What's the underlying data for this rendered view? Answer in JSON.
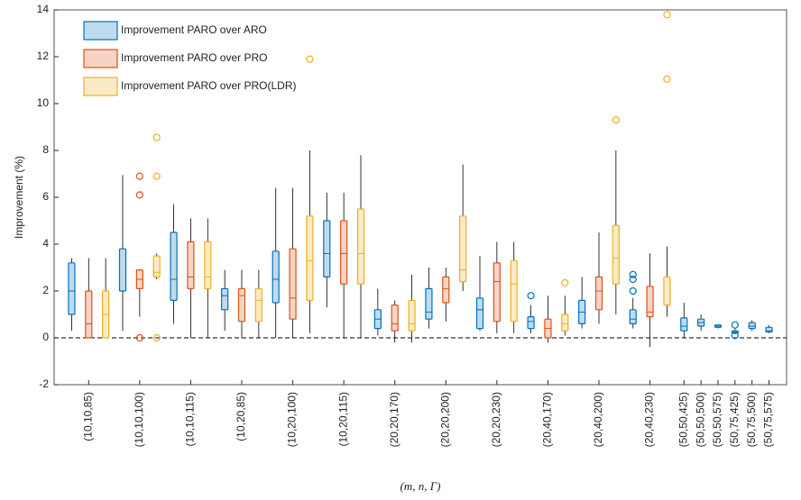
{
  "chart_data": {
    "type": "box",
    "ylabel": "Improvement (%)",
    "xlabel": "(m, n, Γ)",
    "categories": [
      "(10,10,85)",
      "(10,10,100)",
      "(10,10,115)",
      "(10,20,85)",
      "(10,20,100)",
      "(10,20,115)",
      "(20,20,170)",
      "(20,20,200)",
      "(20,20,230)",
      "(20,40,170)",
      "(20,40,200)",
      "(20,40,230)",
      "(50,50,425)",
      "(50,50,500)",
      "(50,50,575)",
      "(50,75,425)",
      "(50,75,500)",
      "(50,75,575)"
    ],
    "ylim": [
      -2,
      14
    ],
    "yticks": [
      -2,
      0,
      2,
      4,
      6,
      8,
      10,
      12,
      14
    ],
    "reference_line": 0,
    "legend": "upper left",
    "series": [
      {
        "name": "Improvement PARO over ARO",
        "color": "#0072bd",
        "boxes": [
          {
            "whislo": 0.3,
            "q1": 1.0,
            "med": 2.0,
            "q3": 3.2,
            "whishi": 3.4,
            "fliers": []
          },
          {
            "whislo": 0.3,
            "q1": 2.0,
            "med": 2.0,
            "q3": 3.8,
            "whishi": 6.95,
            "fliers": []
          },
          {
            "whislo": 0.6,
            "q1": 1.6,
            "med": 2.5,
            "q3": 4.5,
            "whishi": 5.7,
            "fliers": []
          },
          {
            "whislo": 0.3,
            "q1": 1.2,
            "med": 1.8,
            "q3": 2.1,
            "whishi": 2.9,
            "fliers": []
          },
          {
            "whislo": 0,
            "q1": 1.5,
            "med": 2.5,
            "q3": 3.7,
            "whishi": 6.4,
            "fliers": []
          },
          {
            "whislo": 1.3,
            "q1": 2.6,
            "med": 3.6,
            "q3": 5.0,
            "whishi": 6.2,
            "fliers": []
          },
          {
            "whislo": 0.1,
            "q1": 0.4,
            "med": 0.8,
            "q3": 1.2,
            "whishi": 2.1,
            "fliers": []
          },
          {
            "whislo": 0.4,
            "q1": 0.8,
            "med": 1.1,
            "q3": 2.1,
            "whishi": 3.0,
            "fliers": []
          },
          {
            "whislo": 0.3,
            "q1": 0.4,
            "med": 1.2,
            "q3": 1.7,
            "whishi": 3.5,
            "fliers": []
          },
          {
            "whislo": 0.2,
            "q1": 0.4,
            "med": 0.7,
            "q3": 0.9,
            "whishi": 1.4,
            "fliers": [
              1.8
            ]
          },
          {
            "whislo": 0.4,
            "q1": 0.6,
            "med": 1.1,
            "q3": 1.6,
            "whishi": 2.6,
            "fliers": []
          },
          {
            "whislo": 0.4,
            "q1": 0.6,
            "med": 0.8,
            "q3": 1.2,
            "whishi": 1.7,
            "fliers": [
              2.0,
              2.5,
              2.7
            ]
          },
          {
            "whislo": 0,
            "q1": 0.3,
            "med": 0.5,
            "q3": 0.85,
            "whishi": 1.5,
            "fliers": []
          },
          {
            "whislo": 0.3,
            "q1": 0.5,
            "med": 0.65,
            "q3": 0.8,
            "whishi": 1.0,
            "fliers": []
          },
          {
            "whislo": 0.4,
            "q1": 0.45,
            "med": 0.5,
            "q3": 0.55,
            "whishi": 0.55,
            "fliers": []
          },
          {
            "whislo": 0.15,
            "q1": 0.2,
            "med": 0.25,
            "q3": 0.3,
            "whishi": 0.4,
            "fliers": [
              0.55,
              0.1
            ]
          },
          {
            "whislo": 0.3,
            "q1": 0.4,
            "med": 0.5,
            "q3": 0.65,
            "whishi": 0.75,
            "fliers": []
          },
          {
            "whislo": 0.2,
            "q1": 0.25,
            "med": 0.3,
            "q3": 0.45,
            "whishi": 0.55,
            "fliers": []
          }
        ]
      },
      {
        "name": "Improvement PARO over PRO",
        "color": "#d95319",
        "boxes": [
          {
            "whislo": 0,
            "q1": 0,
            "med": 0.6,
            "q3": 2.0,
            "whishi": 3.4,
            "fliers": []
          },
          {
            "whislo": 0.9,
            "q1": 2.1,
            "med": 2.5,
            "q3": 2.9,
            "whishi": 2.9,
            "fliers": [
              6.9,
              6.1,
              0
            ]
          },
          {
            "whislo": 0,
            "q1": 2.1,
            "med": 2.6,
            "q3": 4.1,
            "whishi": 5.1,
            "fliers": []
          },
          {
            "whislo": 0,
            "q1": 0.7,
            "med": 1.8,
            "q3": 2.1,
            "whishi": 2.9,
            "fliers": []
          },
          {
            "whislo": 0,
            "q1": 0.8,
            "med": 1.7,
            "q3": 3.8,
            "whishi": 6.4,
            "fliers": []
          },
          {
            "whislo": 0,
            "q1": 2.3,
            "med": 3.6,
            "q3": 5.0,
            "whishi": 6.2,
            "fliers": []
          },
          {
            "whislo": -0.2,
            "q1": 0.3,
            "med": 0.6,
            "q3": 1.4,
            "whishi": 1.6,
            "fliers": []
          },
          {
            "whislo": 0.7,
            "q1": 1.5,
            "med": 2.1,
            "q3": 2.6,
            "whishi": 3.0,
            "fliers": []
          },
          {
            "whislo": 0.2,
            "q1": 0.7,
            "med": 2.4,
            "q3": 3.2,
            "whishi": 4.1,
            "fliers": []
          },
          {
            "whislo": -0.2,
            "q1": 0,
            "med": 0.4,
            "q3": 0.8,
            "whishi": 1.8,
            "fliers": []
          },
          {
            "whislo": 0.6,
            "q1": 1.2,
            "med": 2.0,
            "q3": 2.6,
            "whishi": 4.5,
            "fliers": []
          },
          {
            "whislo": -0.4,
            "q1": 0.9,
            "med": 1.1,
            "q3": 2.2,
            "whishi": 3.6,
            "fliers": []
          },
          null,
          null,
          null,
          null,
          null,
          null
        ]
      },
      {
        "name": "Improvement PARO over PRO(LDR)",
        "color": "#edb120",
        "boxes": [
          {
            "whislo": 0,
            "q1": 0,
            "med": 1.0,
            "q3": 2.0,
            "whishi": 3.4,
            "fliers": []
          },
          {
            "whislo": 2.5,
            "q1": 2.6,
            "med": 2.8,
            "q3": 3.5,
            "whishi": 3.6,
            "fliers": [
              8.55,
              6.9,
              0
            ]
          },
          {
            "whislo": 0,
            "q1": 2.1,
            "med": 2.6,
            "q3": 4.1,
            "whishi": 5.1,
            "fliers": []
          },
          {
            "whislo": 0,
            "q1": 0.7,
            "med": 1.6,
            "q3": 2.1,
            "whishi": 2.9,
            "fliers": []
          },
          {
            "whislo": 0.2,
            "q1": 1.6,
            "med": 3.3,
            "q3": 5.2,
            "whishi": 8.0,
            "fliers": [
              11.9
            ]
          },
          {
            "whislo": 0,
            "q1": 2.3,
            "med": 3.6,
            "q3": 5.5,
            "whishi": 7.8,
            "fliers": []
          },
          {
            "whislo": -0.2,
            "q1": 0.3,
            "med": 0.6,
            "q3": 1.6,
            "whishi": 2.7,
            "fliers": []
          },
          {
            "whislo": 2.0,
            "q1": 2.4,
            "med": 2.9,
            "q3": 5.2,
            "whishi": 7.4,
            "fliers": []
          },
          {
            "whislo": 0.2,
            "q1": 0.7,
            "med": 2.3,
            "q3": 3.3,
            "whishi": 4.1,
            "fliers": []
          },
          {
            "whislo": 0.1,
            "q1": 0.3,
            "med": 0.6,
            "q3": 1.0,
            "whishi": 1.8,
            "fliers": [
              2.35
            ]
          },
          {
            "whislo": 1.0,
            "q1": 2.3,
            "med": 3.4,
            "q3": 4.8,
            "whishi": 8.0,
            "fliers": [
              9.3
            ]
          },
          {
            "whislo": 0.9,
            "q1": 1.4,
            "med": 1.4,
            "q3": 2.6,
            "whishi": 3.9,
            "fliers": [
              11.05,
              13.8
            ]
          },
          null,
          null,
          null,
          null,
          null,
          null
        ]
      }
    ]
  }
}
